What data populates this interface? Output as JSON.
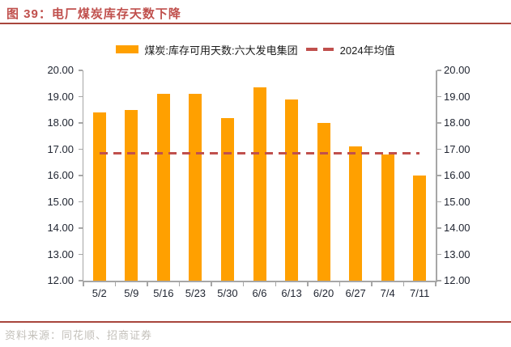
{
  "title": "图 39：电厂煤炭库存天数下降",
  "legend": {
    "bar_label": "煤炭:库存可用天数:六大发电集团",
    "line_label": "2024年均值"
  },
  "source": "资料来源：同花顺、招商证券",
  "colors": {
    "bar": "#FFA000",
    "mean_line": "#C0504D",
    "title": "#C0504D",
    "rule": "#A8453C",
    "axis": "#A6A6A6",
    "tick_label": "#1F2430",
    "source_text": "#C3C0BA"
  },
  "chart_data": {
    "type": "bar",
    "categories": [
      "5/2",
      "5/9",
      "5/16",
      "5/23",
      "5/30",
      "6/6",
      "6/13",
      "6/20",
      "6/27",
      "7/4",
      "7/11"
    ],
    "series": [
      {
        "name": "煤炭:库存可用天数:六大发电集团",
        "type": "bar",
        "values": [
          18.4,
          18.5,
          19.1,
          19.1,
          18.2,
          19.35,
          18.9,
          18.0,
          17.1,
          16.8,
          16.0
        ]
      },
      {
        "name": "2024年均值",
        "type": "dashed-line",
        "value": 16.85
      }
    ],
    "title": "电厂煤炭库存天数下降",
    "xlabel": "",
    "ylabel": "",
    "ylim": [
      12,
      20
    ],
    "ytick_step": 1,
    "ytick_decimals": 2,
    "dual_axis": true,
    "grid": false,
    "legend_position": "top-center"
  }
}
